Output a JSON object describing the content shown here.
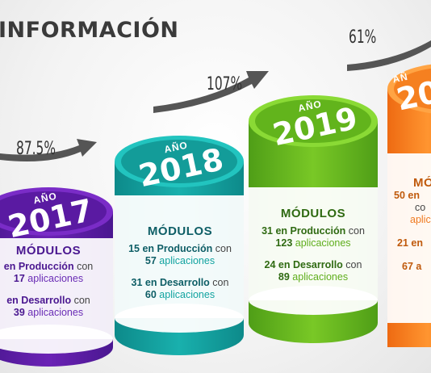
{
  "title": "INFORMACIÓN",
  "growth": {
    "g1": "87.5%",
    "g2": "107%",
    "g3": "61%"
  },
  "years": [
    {
      "ano": "AÑO",
      "year": "2017",
      "color_top": "#6a1fb0",
      "modulos": "MÓDULOS",
      "prod_pre": "",
      "prod_label": "en Producción",
      "prod_con": "con",
      "prod_count": "17",
      "prod_apps": "aplicaciones",
      "dev_pre": "",
      "dev_label": "en Desarrollo",
      "dev_con": "con",
      "dev_count": "39",
      "dev_apps": "aplicaciones"
    },
    {
      "ano": "AÑO",
      "year": "2018",
      "color_top": "#1bb3b3",
      "modulos": "MÓDULOS",
      "prod_pre": "15",
      "prod_label": "en Producción",
      "prod_con": "con",
      "prod_count": "57",
      "prod_apps": "aplicaciones",
      "dev_pre": "31",
      "dev_label": "en Desarrollo",
      "dev_con": "con",
      "dev_count": "60",
      "dev_apps": "aplicaciones"
    },
    {
      "ano": "AÑO",
      "year": "2019",
      "color_top": "#7ccd28",
      "modulos": "MÓDULOS",
      "prod_pre": "31",
      "prod_label": "en Producción",
      "prod_con": "con",
      "prod_count": "123",
      "prod_apps": "aplicaciones",
      "dev_pre": "24",
      "dev_label": "en Desarrollo",
      "dev_con": "con",
      "dev_count": "89",
      "dev_apps": "aplicaciones"
    },
    {
      "ano": "AÑ",
      "year": "20",
      "color_top": "#ff9a2a",
      "modulos": "MÓ",
      "line1": "50 en",
      "line2": "co",
      "line3": "aplic",
      "line4": "21 en",
      "line5": "67 a"
    }
  ]
}
